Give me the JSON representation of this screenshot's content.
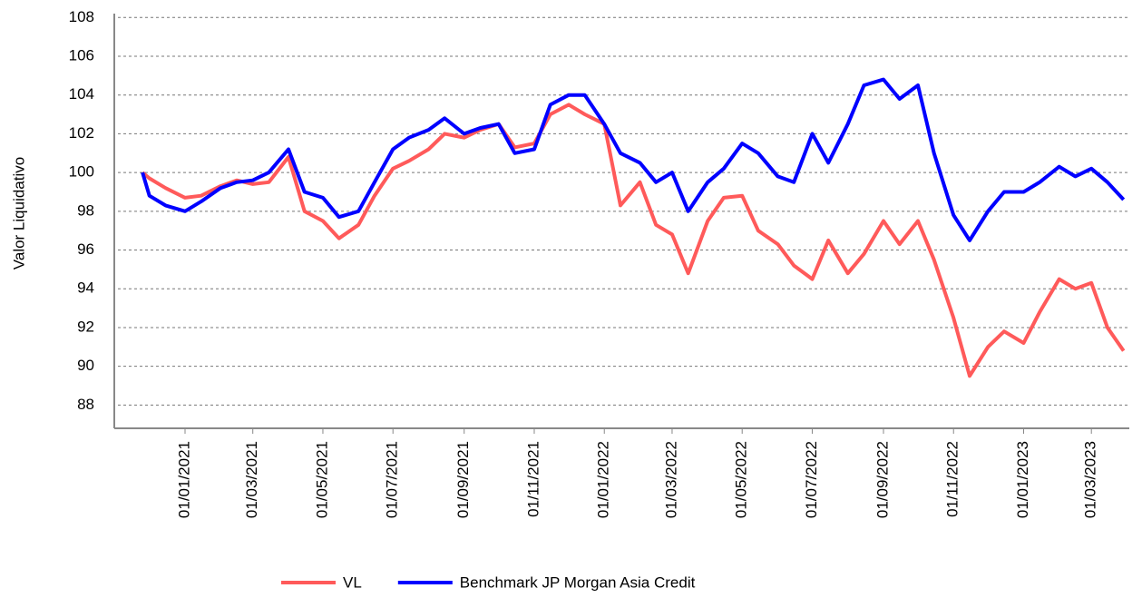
{
  "chart_data": {
    "type": "line",
    "y_label": "Valor Liquidativo",
    "x": [
      "2020-11-25",
      "2020-12-01",
      "2020-12-15",
      "2021-01-01",
      "2021-01-15",
      "2021-02-01",
      "2021-02-15",
      "2021-03-01",
      "2021-03-15",
      "2021-04-01",
      "2021-04-15",
      "2021-05-01",
      "2021-05-15",
      "2021-06-01",
      "2021-06-15",
      "2021-07-01",
      "2021-07-15",
      "2021-08-01",
      "2021-08-15",
      "2021-09-01",
      "2021-09-15",
      "2021-10-01",
      "2021-10-15",
      "2021-11-01",
      "2021-11-15",
      "2021-12-01",
      "2021-12-15",
      "2022-01-01",
      "2022-01-15",
      "2022-02-01",
      "2022-02-15",
      "2022-03-01",
      "2022-03-15",
      "2022-04-01",
      "2022-04-15",
      "2022-05-01",
      "2022-05-15",
      "2022-06-01",
      "2022-06-15",
      "2022-07-01",
      "2022-07-15",
      "2022-08-01",
      "2022-08-15",
      "2022-09-01",
      "2022-09-15",
      "2022-10-01",
      "2022-10-15",
      "2022-11-01",
      "2022-11-15",
      "2022-12-01",
      "2022-12-15",
      "2023-01-01",
      "2023-01-15",
      "2023-02-01",
      "2023-02-15",
      "2023-03-01",
      "2023-03-15",
      "2023-03-29"
    ],
    "series": [
      {
        "name": "VL",
        "color": "#ff5a5a",
        "values": [
          100.0,
          99.7,
          99.2,
          98.7,
          98.8,
          99.3,
          99.6,
          99.4,
          99.5,
          100.8,
          98.0,
          97.5,
          96.6,
          97.3,
          98.8,
          100.2,
          100.6,
          101.2,
          102.0,
          101.8,
          102.2,
          102.5,
          101.3,
          101.5,
          103.0,
          103.5,
          103.0,
          102.5,
          98.3,
          99.5,
          97.3,
          96.8,
          94.8,
          97.5,
          98.7,
          98.8,
          97.0,
          96.3,
          95.2,
          94.5,
          96.5,
          94.8,
          95.8,
          97.5,
          96.3,
          97.5,
          95.5,
          92.5,
          89.5,
          91.0,
          91.8,
          91.2,
          92.8,
          94.5,
          94.0,
          94.3,
          92.0,
          90.8
        ]
      },
      {
        "name": "Benchmark JP Morgan Asia Credit",
        "color": "#0000ff",
        "values": [
          100.0,
          98.8,
          98.3,
          98.0,
          98.5,
          99.2,
          99.5,
          99.6,
          100.0,
          101.2,
          99.0,
          98.7,
          97.7,
          98.0,
          99.5,
          101.2,
          101.8,
          102.2,
          102.8,
          102.0,
          102.3,
          102.5,
          101.0,
          101.2,
          103.5,
          104.0,
          104.0,
          102.5,
          101.0,
          100.5,
          99.5,
          100.0,
          98.0,
          99.5,
          100.2,
          101.5,
          101.0,
          99.8,
          99.5,
          102.0,
          100.5,
          102.5,
          104.5,
          104.8,
          103.8,
          104.5,
          101.0,
          97.8,
          96.5,
          98.0,
          99.0,
          99.0,
          99.5,
          100.3,
          99.8,
          100.2,
          99.5,
          98.6
        ]
      }
    ],
    "xlim": [
      "2020-11-02",
      "2023-04-03"
    ],
    "xticks": [
      {
        "value": "2021-01-01",
        "label": "01/01/2021"
      },
      {
        "value": "2021-03-01",
        "label": "01/03/2021"
      },
      {
        "value": "2021-05-01",
        "label": "01/05/2021"
      },
      {
        "value": "2021-07-01",
        "label": "01/07/2021"
      },
      {
        "value": "2021-09-01",
        "label": "01/09/2021"
      },
      {
        "value": "2021-11-01",
        "label": "01/11/2021"
      },
      {
        "value": "2022-01-01",
        "label": "01/01/2022"
      },
      {
        "value": "2022-03-01",
        "label": "01/03/2022"
      },
      {
        "value": "2022-05-01",
        "label": "01/05/2022"
      },
      {
        "value": "2022-07-01",
        "label": "01/07/2022"
      },
      {
        "value": "2022-09-01",
        "label": "01/09/2022"
      },
      {
        "value": "2022-11-01",
        "label": "01/11/2022"
      },
      {
        "value": "2023-01-01",
        "label": "01/01/2023"
      },
      {
        "value": "2023-03-01",
        "label": "01/03/2023"
      }
    ],
    "ylim": [
      86.8,
      108.2
    ],
    "yticks": [
      88,
      90,
      92,
      94,
      96,
      98,
      100,
      102,
      104,
      106,
      108
    ],
    "grid": true
  }
}
